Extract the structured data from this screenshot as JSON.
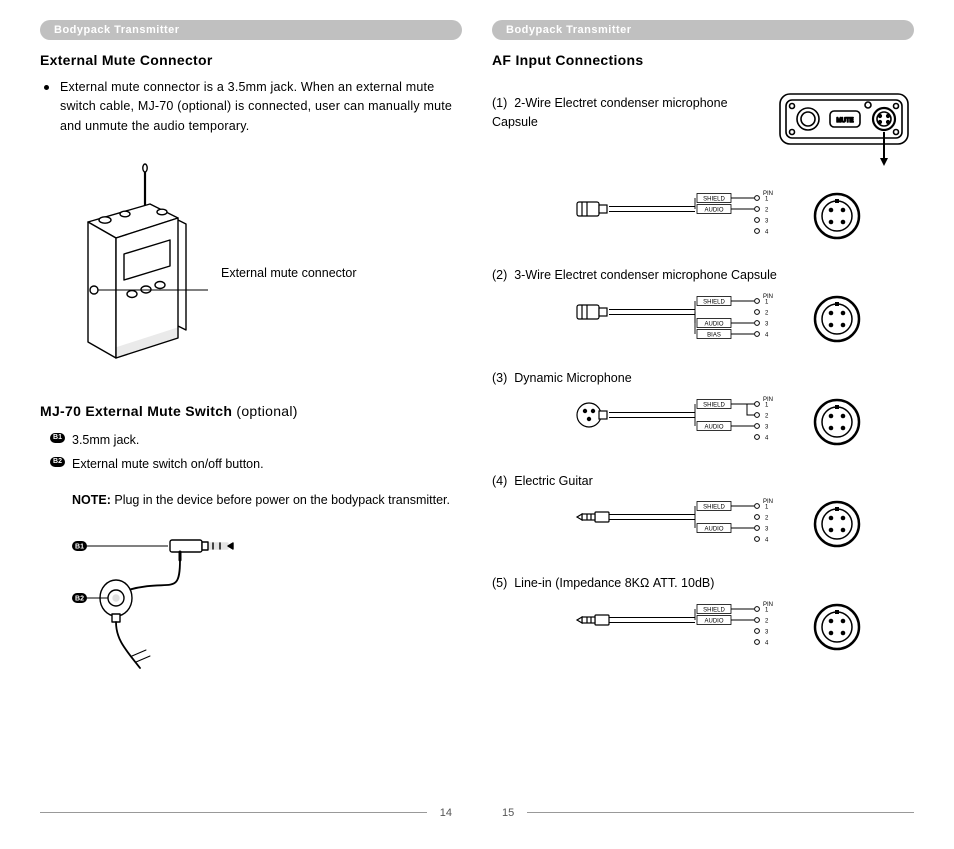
{
  "header": {
    "label": "Bodypack Transmitter"
  },
  "left": {
    "title1": "External Mute Connector",
    "bullet1": "External mute connector is a 3.5mm jack. When an external mute switch cable, MJ-70 (optional) is connected, user can manually mute and unmute the audio temporary.",
    "device_label": "External mute connector",
    "title2_main": "MJ-70 External Mute Switch",
    "title2_opt": " (optional)",
    "b1_label": "B1",
    "b1_text": "3.5mm jack.",
    "b2_label": "B2",
    "b2_text": "External mute switch on/off button.",
    "note_bold": "NOTE:",
    "note_text": " Plug in the device before power on the bodypack transmitter.",
    "page_num": "14"
  },
  "right": {
    "title": "AF Input Connections",
    "items": [
      {
        "num": "(1)",
        "label": "2-Wire Electret condenser microphone Capsule",
        "pins": [
          "1",
          "2",
          "3",
          "4"
        ],
        "wires": [
          {
            "label": "SHIELD",
            "to": 1
          },
          {
            "label": "AUDIO",
            "to": 2
          }
        ],
        "plug": "mic"
      },
      {
        "num": "(2)",
        "label": "3-Wire Electret condenser microphone Capsule",
        "pins": [
          "1",
          "2",
          "3",
          "4"
        ],
        "wires": [
          {
            "label": "SHIELD",
            "to": 1
          },
          {
            "label": "AUDIO",
            "to": 3
          },
          {
            "label": "BIAS",
            "to": 4
          }
        ],
        "plug": "mic"
      },
      {
        "num": "(3)",
        "label": "Dynamic Microphone",
        "pins": [
          "1",
          "2",
          "3",
          "4"
        ],
        "wires": [
          {
            "label": "SHIELD",
            "to": 1
          },
          {
            "label": "AUDIO",
            "to": 3
          }
        ],
        "plug": "xlr",
        "jumper": [
          1,
          2
        ]
      },
      {
        "num": "(4)",
        "label": "Electric Guitar",
        "pins": [
          "1",
          "2",
          "3",
          "4"
        ],
        "wires": [
          {
            "label": "SHIELD",
            "to": 1
          },
          {
            "label": "AUDIO",
            "to": 3
          }
        ],
        "plug": "trs"
      },
      {
        "num": "(5)",
        "label": "Line-in (Impedance 8KΩ ATT. 10dB)",
        "pins": [
          "1",
          "2",
          "3",
          "4"
        ],
        "wires": [
          {
            "label": "SHIELD",
            "to": 1
          },
          {
            "label": "AUDIO",
            "to": 2
          }
        ],
        "plug": "trs"
      }
    ],
    "pin_header": "PIN",
    "page_num": "15"
  },
  "colors": {
    "pill": "#c0c0c0",
    "text": "#000000",
    "rule": "#999999"
  }
}
